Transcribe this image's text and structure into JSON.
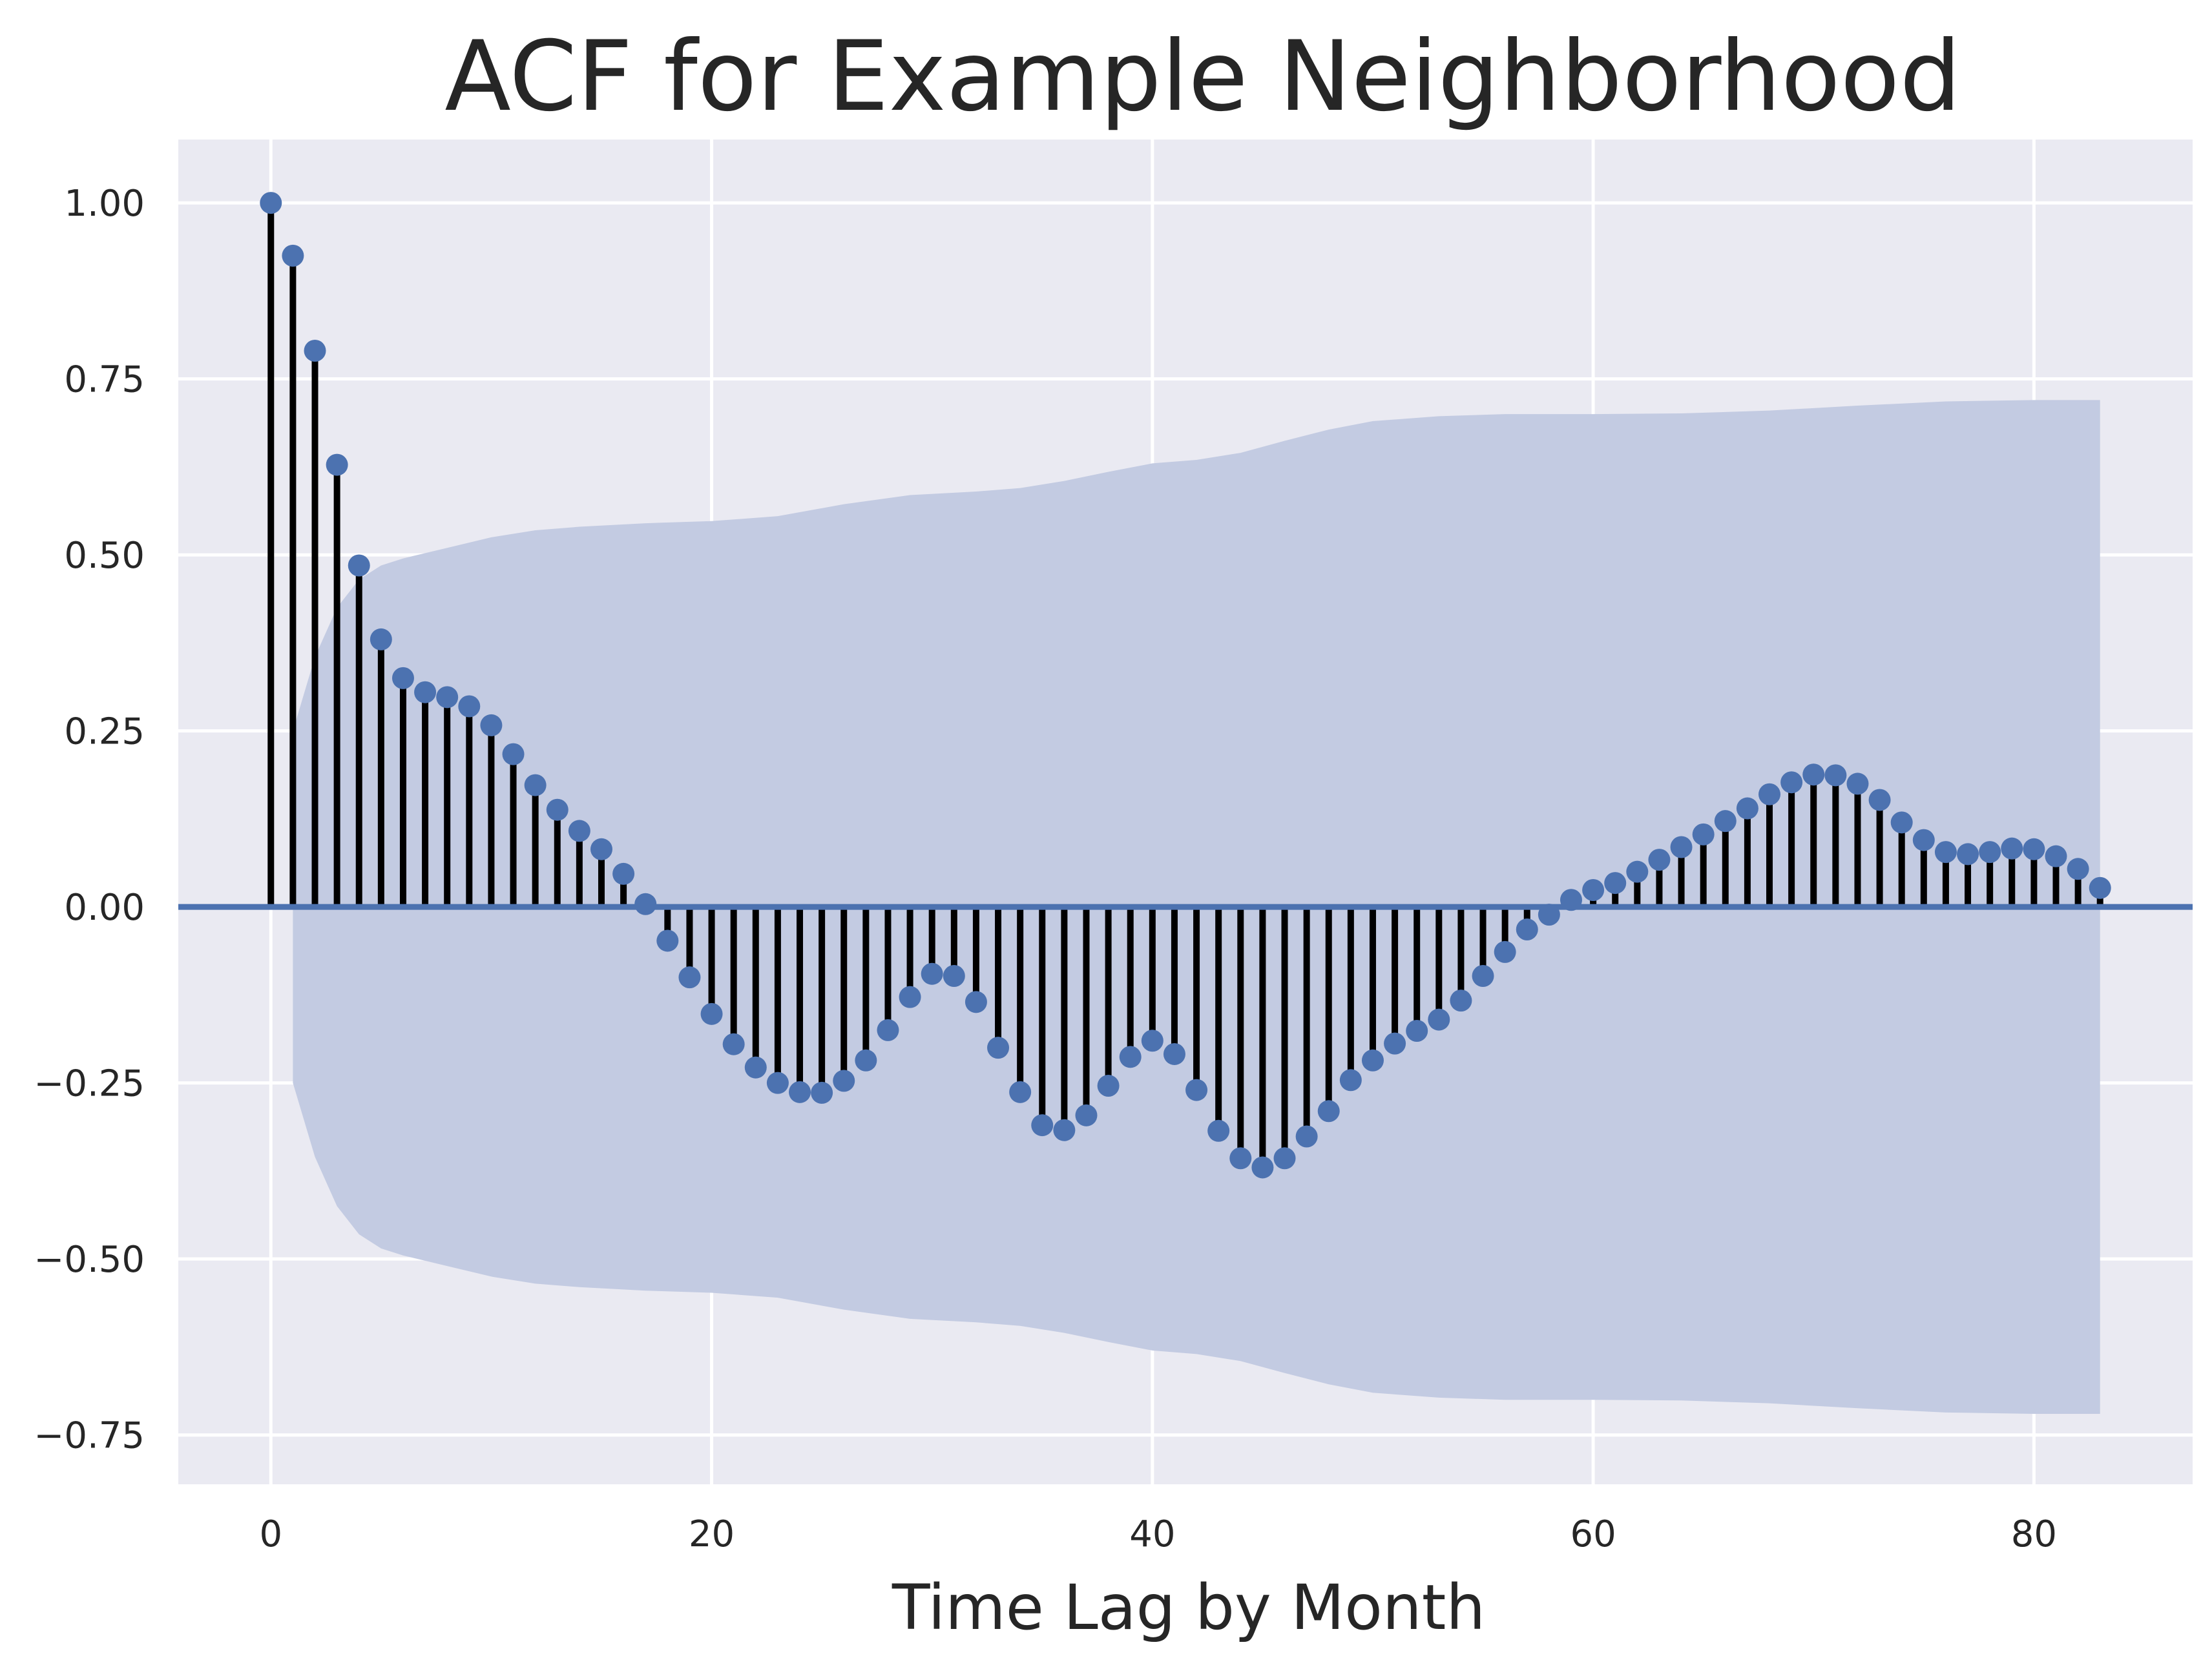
{
  "chart_data": {
    "type": "stem",
    "title": "ACF for Example Neighborhood",
    "xlabel": "Time Lag by Month",
    "ylabel": "",
    "xlim": [
      -4.2,
      87.2
    ],
    "ylim": [
      -0.82,
      1.09
    ],
    "xticks": [
      0,
      20,
      40,
      60,
      80
    ],
    "yticks": [
      1.0,
      0.75,
      0.5,
      0.25,
      0.0,
      -0.25,
      -0.5,
      -0.75
    ],
    "xtick_labels": [
      "0",
      "20",
      "40",
      "60",
      "80"
    ],
    "ytick_labels": [
      "1.00",
      "0.75",
      "0.50",
      "0.25",
      "0.00",
      "−0.25",
      "−0.50",
      "−0.75"
    ],
    "grid": true,
    "lags": [
      0,
      1,
      2,
      3,
      4,
      5,
      6,
      7,
      8,
      9,
      10,
      11,
      12,
      13,
      14,
      15,
      16,
      17,
      18,
      19,
      20,
      21,
      22,
      23,
      24,
      25,
      26,
      27,
      28,
      29,
      30,
      31,
      32,
      33,
      34,
      35,
      36,
      37,
      38,
      39,
      40,
      41,
      42,
      43,
      44,
      45,
      46,
      47,
      48,
      49,
      50,
      51,
      52,
      53,
      54,
      55,
      56,
      57,
      58,
      59,
      60,
      61,
      62,
      63,
      64,
      65,
      66,
      67,
      68,
      69,
      70,
      71,
      72,
      73,
      74,
      75,
      76,
      77,
      78,
      79,
      80,
      81,
      82,
      83
    ],
    "acf": [
      1.0,
      0.925,
      0.79,
      0.628,
      0.485,
      0.38,
      0.325,
      0.305,
      0.298,
      0.285,
      0.258,
      0.217,
      0.173,
      0.138,
      0.108,
      0.082,
      0.047,
      0.004,
      -0.048,
      -0.1,
      -0.152,
      -0.195,
      -0.228,
      -0.25,
      -0.263,
      -0.264,
      -0.247,
      -0.218,
      -0.175,
      -0.128,
      -0.095,
      -0.098,
      -0.135,
      -0.2,
      -0.263,
      -0.31,
      -0.317,
      -0.296,
      -0.254,
      -0.213,
      -0.19,
      -0.209,
      -0.26,
      -0.318,
      -0.357,
      -0.37,
      -0.357,
      -0.326,
      -0.29,
      -0.246,
      -0.218,
      -0.194,
      -0.176,
      -0.16,
      -0.133,
      -0.098,
      -0.064,
      -0.032,
      -0.011,
      0.01,
      0.024,
      0.034,
      0.05,
      0.067,
      0.085,
      0.103,
      0.122,
      0.14,
      0.16,
      0.177,
      0.188,
      0.187,
      0.175,
      0.152,
      0.12,
      0.095,
      0.078,
      0.075,
      0.078,
      0.083,
      0.082,
      0.072,
      0.054,
      0.027
    ],
    "confint_lags": [
      1,
      2,
      3,
      4,
      5,
      6,
      8,
      10,
      12,
      14,
      17,
      20,
      23,
      26,
      29,
      32,
      34,
      36,
      38,
      40,
      42,
      44,
      46,
      48,
      50,
      53,
      56,
      60,
      64,
      68,
      72,
      76,
      80,
      83
    ],
    "confint_upper": [
      0.25,
      0.355,
      0.425,
      0.465,
      0.485,
      0.495,
      0.51,
      0.525,
      0.535,
      0.54,
      0.545,
      0.548,
      0.555,
      0.572,
      0.585,
      0.59,
      0.595,
      0.605,
      0.618,
      0.63,
      0.635,
      0.645,
      0.662,
      0.678,
      0.69,
      0.697,
      0.7,
      0.7,
      0.701,
      0.705,
      0.712,
      0.718,
      0.72,
      0.72
    ],
    "colors": {
      "marker": "#4c72b0",
      "stem": "#000000",
      "band": "#c3cbe2",
      "background": "#eaeaf2",
      "grid": "#ffffff",
      "zero_line": "#4c72b0",
      "text": "#262626"
    }
  }
}
